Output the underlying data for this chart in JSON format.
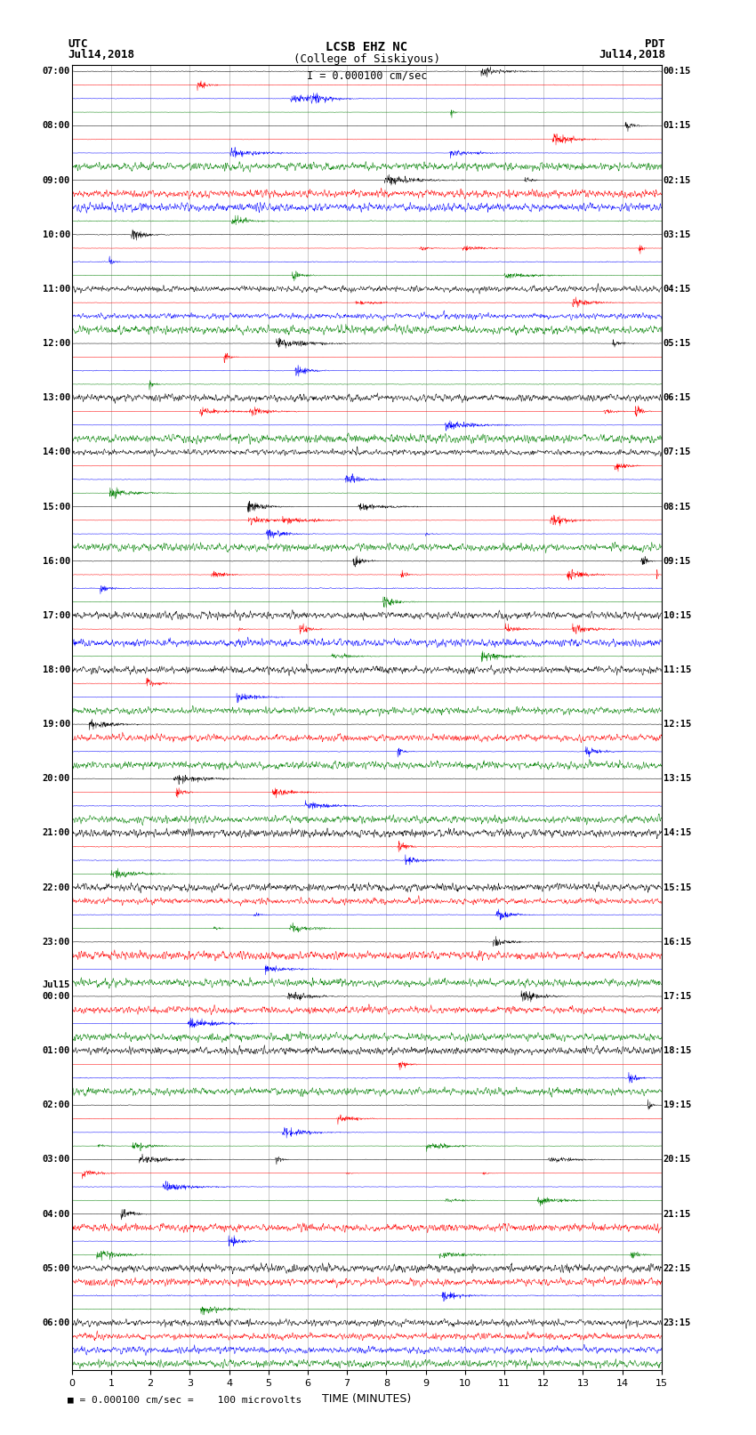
{
  "title_line1": "LCSB EHZ NC",
  "title_line2": "(College of Siskiyous)",
  "scale_label": "I = 0.000100 cm/sec",
  "utc_label": "UTC",
  "pdt_label": "PDT",
  "date_left": "Jul14,2018",
  "date_right": "Jul14,2018",
  "xlabel": "TIME (MINUTES)",
  "bottom_note": "= 0.000100 cm/sec =    100 microvolts",
  "utc_hours": [
    "07:00",
    "08:00",
    "09:00",
    "10:00",
    "11:00",
    "12:00",
    "13:00",
    "14:00",
    "15:00",
    "16:00",
    "17:00",
    "18:00",
    "19:00",
    "20:00",
    "21:00",
    "22:00",
    "23:00",
    "00:00",
    "01:00",
    "02:00",
    "03:00",
    "04:00",
    "05:00",
    "06:00"
  ],
  "pdt_hours": [
    "00:15",
    "01:15",
    "02:15",
    "03:15",
    "04:15",
    "05:15",
    "06:15",
    "07:15",
    "08:15",
    "09:15",
    "10:15",
    "11:15",
    "12:15",
    "13:15",
    "14:15",
    "15:15",
    "16:15",
    "17:15",
    "18:15",
    "19:15",
    "20:15",
    "21:15",
    "22:15",
    "23:15"
  ],
  "jul15_hour_index": 17,
  "trace_colors": [
    "black",
    "red",
    "blue",
    "green"
  ],
  "fig_width": 8.5,
  "fig_height": 16.13,
  "dpi": 100,
  "bg_color": "#ffffff",
  "num_hours": 24,
  "traces_per_hour": 4,
  "xmin": 0,
  "xmax": 15,
  "xticks": [
    0,
    1,
    2,
    3,
    4,
    5,
    6,
    7,
    8,
    9,
    10,
    11,
    12,
    13,
    14,
    15
  ],
  "grid_color": "#aaaaaa",
  "random_seed": 42
}
